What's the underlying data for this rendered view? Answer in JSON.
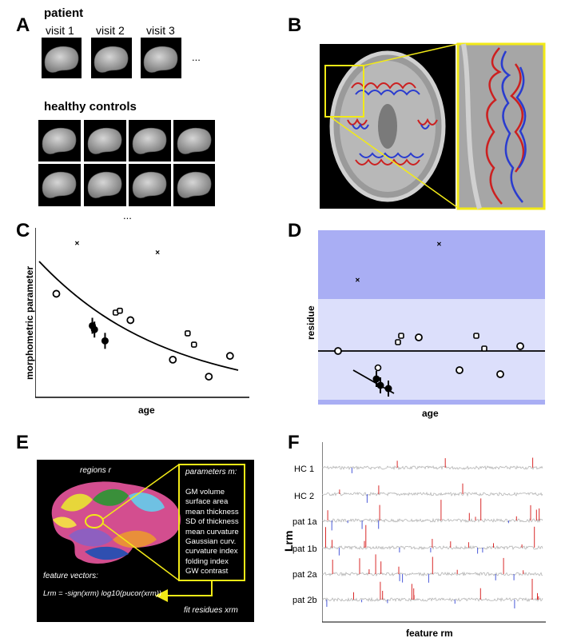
{
  "panel_labels": {
    "A": "A",
    "B": "B",
    "C": "C",
    "D": "D",
    "E": "E",
    "F": "F"
  },
  "panelA": {
    "patient_title": "patient",
    "visits": [
      "visit 1",
      "visit 2",
      "visit 3"
    ],
    "ellipsis": "...",
    "controls_title": "healthy controls",
    "controls_ellipsis": "..."
  },
  "panelC": {
    "ylabel": "morphometric parameter",
    "xlabel": "age",
    "chart_data": {
      "type": "scatter",
      "xlabel": "age",
      "ylabel": "morphometric parameter",
      "series": [
        {
          "marker": "circle",
          "points": [
            [
              1,
              5.5
            ],
            [
              4.5,
              4.1
            ],
            [
              6.5,
              2.0
            ],
            [
              8.2,
              1.1
            ],
            [
              9.2,
              2.2
            ]
          ]
        },
        {
          "marker": "square",
          "points": [
            [
              3.8,
              4.5
            ],
            [
              4.0,
              4.6
            ],
            [
              7.2,
              3.4
            ],
            [
              7.5,
              2.8
            ]
          ]
        },
        {
          "marker": "cross",
          "points": [
            [
              2.0,
              8.2
            ],
            [
              5.8,
              7.7
            ]
          ]
        },
        {
          "marker": "filled-circle",
          "points": [
            [
              2.7,
              3.8
            ],
            [
              2.8,
              3.6
            ],
            [
              3.3,
              3.0
            ]
          ]
        }
      ],
      "fit_line": "exponential decay"
    }
  },
  "panelD": {
    "ylabel": "residue",
    "xlabel": "age",
    "colors": {
      "outer": "#a9aef4",
      "inner": "#dcdffb"
    }
  },
  "panelE": {
    "regions_label": "regions r",
    "parameters_title": "parameters m:",
    "parameters": [
      "GM volume",
      "surface area",
      "mean thickness",
      "SD of thickness",
      "mean curvature",
      "Gaussian curv.",
      "curvature index",
      "folding index",
      "GW contrast"
    ],
    "feature_vectors": "feature vectors:",
    "formula": "Lrm = -sign(xrm) log10(pucor(xrm))",
    "fit_residues": "fit residues xrm",
    "accent": "#f2ea17"
  },
  "panelF": {
    "ylabel": "Lrm",
    "xlabel": "feature rm",
    "rows": [
      "HC 1",
      "HC 2",
      "pat 1a",
      "pat 1b",
      "pat 2a",
      "pat 2b"
    ]
  }
}
